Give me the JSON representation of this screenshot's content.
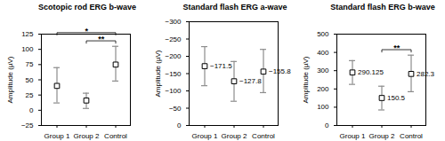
{
  "chart_data": [
    {
      "type": "scatter",
      "title": "Scotopic rod ERG b-wave",
      "y_label": "Amplitude (µV)",
      "categories": [
        "Group 1",
        "Group 2",
        "Control"
      ],
      "values": [
        40,
        16,
        75
      ],
      "error_low": [
        12,
        3,
        48
      ],
      "error_high": [
        70,
        28,
        105
      ],
      "color": "#000000",
      "marker": "square",
      "ylim": [
        -25,
        125
      ],
      "yticks": [
        -25,
        0,
        25,
        50,
        75,
        100,
        125
      ],
      "annotations": [
        {
          "from": "Group 2",
          "to": "Control",
          "text": "**"
        },
        {
          "from": "Group 1",
          "to": "Control",
          "text": "*"
        }
      ]
    },
    {
      "type": "scatter",
      "title": "Standard flash ERG a-wave",
      "y_label": "Amplitude (µV)",
      "categories": [
        "Group 1",
        "Group 2",
        "Control"
      ],
      "values": [
        -171.5,
        -127.8,
        -155.8
      ],
      "error_low": [
        -228,
        -185,
        -220
      ],
      "error_high": [
        -115,
        -70,
        -95
      ],
      "color": "#000000",
      "marker": "square",
      "data_labels": true,
      "ylim": [
        0,
        -300
      ],
      "yticks": [
        0,
        -50,
        -100,
        -150,
        -200,
        -250,
        -300
      ]
    },
    {
      "type": "scatter",
      "title": "Standard flash ERG b-wave",
      "y_label": "Amplitude (µV)",
      "categories": [
        "Group 1",
        "Group 2",
        "Control"
      ],
      "values": [
        290.125,
        150.5,
        282.3
      ],
      "error_low": [
        225,
        85,
        185
      ],
      "error_high": [
        355,
        215,
        385
      ],
      "color": "#000000",
      "marker": "square",
      "data_labels": true,
      "ylim": [
        0,
        500
      ],
      "yticks": [
        0,
        100,
        200,
        300,
        400,
        500
      ],
      "annotations": [
        {
          "from": "Group 2",
          "to": "Control",
          "text": "**"
        }
      ]
    }
  ]
}
